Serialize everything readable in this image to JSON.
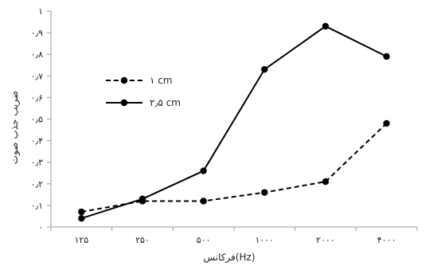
{
  "chart_data": {
    "type": "line",
    "categories": [
      "۱۲۵",
      "۲۵۰",
      "۵۰۰",
      "۱۰۰۰",
      "۲۰۰۰",
      "۴۰۰۰"
    ],
    "y_ticks": [
      "۰",
      "۰٫۱",
      "۰٫۲",
      "۰٫۳",
      "۰٫۴",
      "۰٫۵",
      "۰٫۶",
      "۰٫۷",
      "۰٫۸",
      "۰٫۹",
      "۱"
    ],
    "ylim": [
      0,
      1
    ],
    "xlabel": "فرکانس(Hz)",
    "ylabel": "ضریب جذب صوت",
    "grid": false,
    "legend_position": "left-middle",
    "series": [
      {
        "name": "۱ cm",
        "style": "dashed",
        "color": "#000000",
        "values": [
          0.07,
          0.12,
          0.12,
          0.16,
          0.21,
          0.48
        ]
      },
      {
        "name": "۲٫۵ cm",
        "style": "solid",
        "color": "#000000",
        "values": [
          0.04,
          0.13,
          0.26,
          0.73,
          0.93,
          0.79
        ]
      }
    ]
  }
}
